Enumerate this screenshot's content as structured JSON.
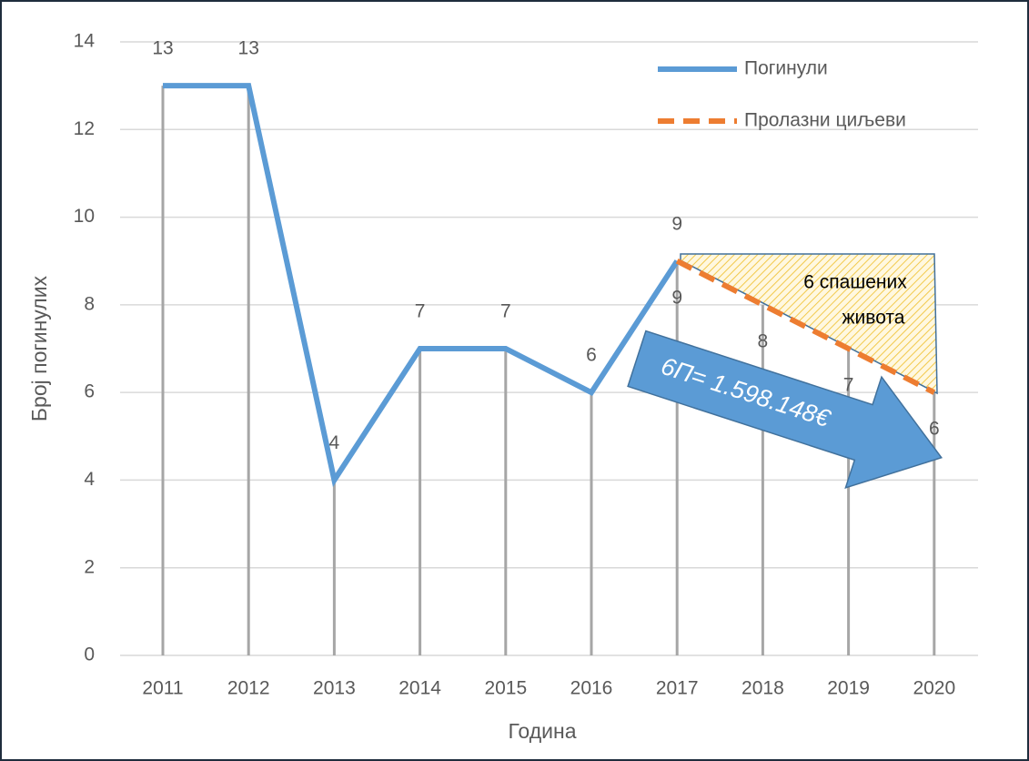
{
  "chart_data": {
    "type": "line",
    "xlabel": "Година",
    "ylabel": "Број погинулих",
    "categories": [
      "2011",
      "2012",
      "2013",
      "2014",
      "2015",
      "2016",
      "2017",
      "2018",
      "2019",
      "2020"
    ],
    "series": [
      {
        "name": "Погинули",
        "color": "#5b9bd5",
        "dash": false,
        "values": [
          13,
          13,
          4,
          7,
          7,
          6,
          9,
          null,
          null,
          null
        ]
      },
      {
        "name": "Пролазни циљеви",
        "color": "#ed7d31",
        "dash": true,
        "values": [
          null,
          null,
          null,
          null,
          null,
          null,
          9,
          8,
          7,
          6
        ]
      }
    ],
    "ylim": [
      0,
      14
    ],
    "yticks": [
      0,
      2,
      4,
      6,
      8,
      10,
      12,
      14
    ],
    "grid": true,
    "drop_lines": true,
    "legend": "upper right",
    "annotations": [
      [
        "6 спашених",
        "живота"
      ],
      "6П= 1.598.148€"
    ]
  }
}
